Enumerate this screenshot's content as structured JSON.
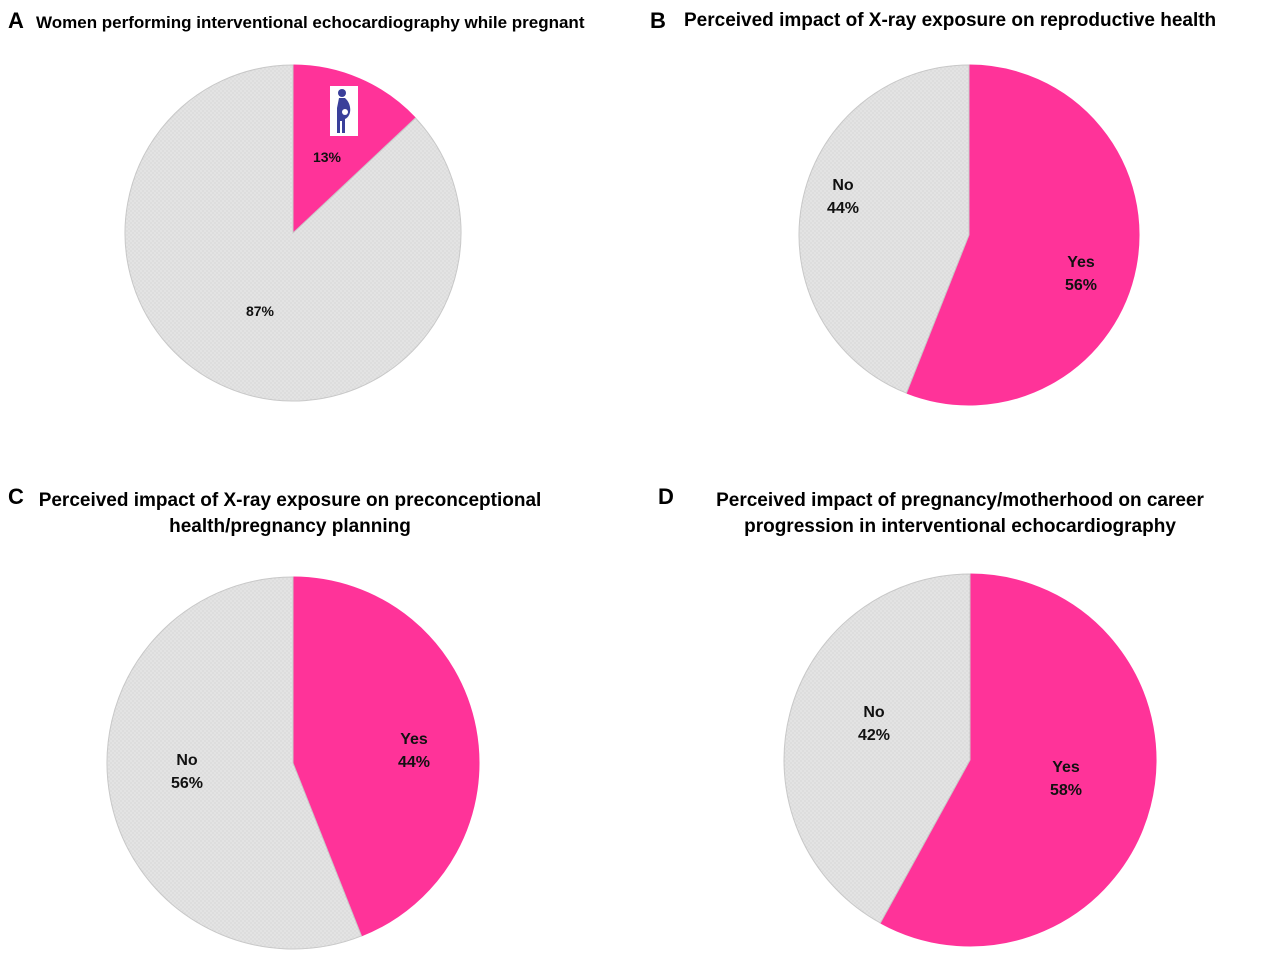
{
  "colors": {
    "yes": "#ff3399",
    "no": "#e3e3e3",
    "edge": "#c8c8c8"
  },
  "panels": [
    {
      "letter": "A",
      "title_line1": "Women performing interventional echocardiography  while pregnant",
      "title_line2": ""
    },
    {
      "letter": "B",
      "title_line1": "Perceived impact of X-ray exposure on reproductive health",
      "title_line2": ""
    },
    {
      "letter": "C",
      "title_line1": "Perceived impact of X-ray exposure on preconceptional",
      "title_line2": "health/pregnancy planning"
    },
    {
      "letter": "D",
      "title_line1": "Perceived impact of pregnancy/motherhood on career",
      "title_line2": "progression in interventional echocardiography"
    }
  ],
  "chart_data": [
    {
      "type": "pie",
      "title": "Women performing interventional echocardiography  while pregnant",
      "slices": [
        {
          "label": "",
          "value": 13,
          "value_label": "13%",
          "color_key": "yes",
          "icon": "pregnant-woman-icon"
        },
        {
          "label": "",
          "value": 87,
          "value_label": "87%",
          "color_key": "no"
        }
      ]
    },
    {
      "type": "pie",
      "title": "Perceived impact of X-ray exposure on reproductive health",
      "slices": [
        {
          "label": "Yes",
          "value": 56,
          "value_label": "56%",
          "color_key": "yes"
        },
        {
          "label": "No",
          "value": 44,
          "value_label": "44%",
          "color_key": "no"
        }
      ]
    },
    {
      "type": "pie",
      "title": "Perceived impact of X-ray exposure on preconceptional health/pregnancy planning",
      "slices": [
        {
          "label": "Yes",
          "value": 44,
          "value_label": "44%",
          "color_key": "yes"
        },
        {
          "label": "No",
          "value": 56,
          "value_label": "56%",
          "color_key": "no"
        }
      ]
    },
    {
      "type": "pie",
      "title": "Perceived impact of pregnancy/motherhood on career progression in interventional echocardiography",
      "slices": [
        {
          "label": "Yes",
          "value": 58,
          "value_label": "58%",
          "color_key": "yes"
        },
        {
          "label": "No",
          "value": 42,
          "value_label": "42%",
          "color_key": "no"
        }
      ]
    }
  ]
}
